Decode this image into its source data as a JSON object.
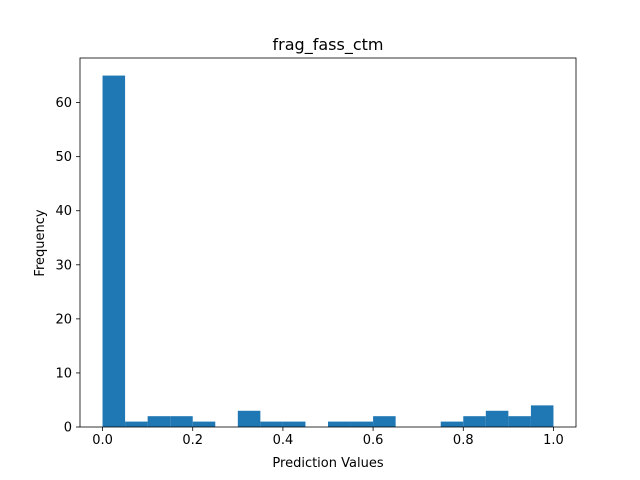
{
  "chart_data": {
    "type": "bar",
    "title": "frag_fass_ctm",
    "xlabel": "Prediction Values",
    "ylabel": "Frequency",
    "bin_edges": [
      0.0,
      0.05,
      0.1,
      0.15,
      0.2,
      0.25,
      0.3,
      0.35,
      0.4,
      0.45,
      0.5,
      0.55,
      0.6,
      0.65,
      0.7,
      0.75,
      0.8,
      0.85,
      0.9,
      0.95,
      1.0
    ],
    "values": [
      65,
      1,
      2,
      2,
      1,
      0,
      3,
      1,
      1,
      0,
      1,
      1,
      2,
      0,
      0,
      1,
      2,
      3,
      2,
      4
    ],
    "xlim": [
      -0.05,
      1.05
    ],
    "ylim": [
      0,
      68.25
    ],
    "xticks": [
      0.0,
      0.2,
      0.4,
      0.6,
      0.8,
      1.0
    ],
    "xtick_labels": [
      "0.0",
      "0.2",
      "0.4",
      "0.6",
      "0.8",
      "1.0"
    ],
    "yticks": [
      0,
      10,
      20,
      30,
      40,
      50,
      60
    ],
    "ytick_labels": [
      "0",
      "10",
      "20",
      "30",
      "40",
      "50",
      "60"
    ],
    "grid": false,
    "bar_color": "#1f77b4"
  }
}
